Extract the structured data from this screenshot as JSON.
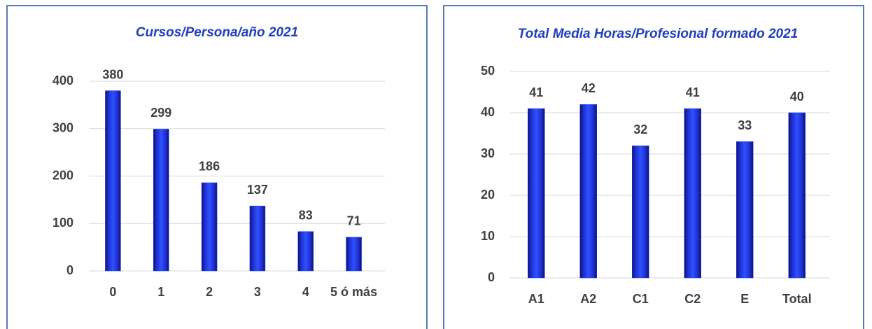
{
  "chart_data": [
    {
      "type": "bar",
      "title": "Cursos/Persona/año 2021",
      "categories": [
        "0",
        "1",
        "2",
        "3",
        "4",
        "5 ó más"
      ],
      "values": [
        380,
        299,
        186,
        137,
        83,
        71
      ],
      "color": "#2440f0",
      "ylim": [
        0,
        400
      ],
      "yticks": [
        0,
        100,
        200,
        300,
        400
      ],
      "grid": true
    },
    {
      "type": "bar",
      "title": "Total Media Horas/Profesional formado 2021",
      "categories": [
        "A1",
        "A2",
        "C1",
        "C2",
        "E",
        "Total"
      ],
      "values": [
        41,
        42,
        32,
        41,
        33,
        40
      ],
      "color": "#2440f0",
      "ylim": [
        0,
        50
      ],
      "yticks": [
        0,
        10,
        20,
        30,
        40,
        50
      ],
      "grid": true
    }
  ]
}
